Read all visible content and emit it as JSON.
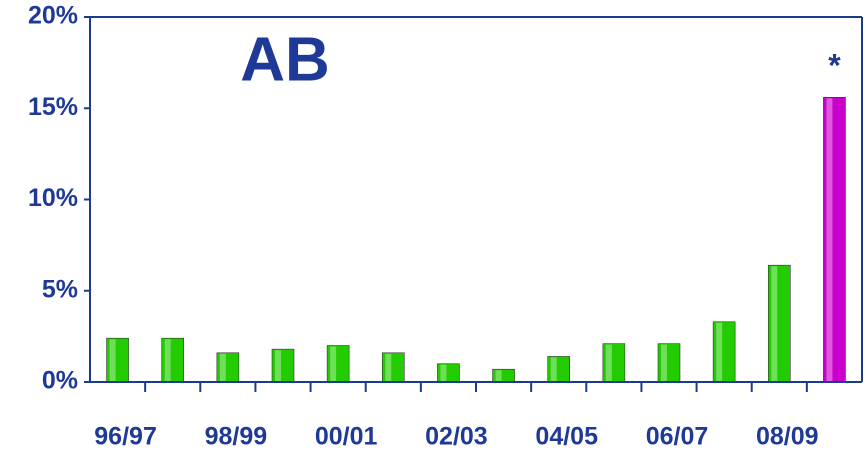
{
  "chart_data": {
    "type": "bar",
    "title": "AB",
    "annotation": "*",
    "categories": [
      "96/97",
      null,
      "98/99",
      null,
      "00/01",
      null,
      "02/03",
      null,
      "04/05",
      null,
      "06/07",
      null,
      "08/09",
      null
    ],
    "values": [
      2.4,
      2.4,
      1.6,
      1.8,
      2.0,
      1.6,
      1.0,
      0.7,
      1.4,
      2.1,
      2.1,
      3.3,
      6.4,
      15.6
    ],
    "colors": [
      "#22cc00",
      "#22cc00",
      "#22cc00",
      "#22cc00",
      "#22cc00",
      "#22cc00",
      "#22cc00",
      "#22cc00",
      "#22cc00",
      "#22cc00",
      "#22cc00",
      "#22cc00",
      "#22cc00",
      "#cc00cc"
    ],
    "ylim": [
      0,
      20
    ],
    "yticks": [
      {
        "value": 0,
        "label": "0%"
      },
      {
        "value": 5,
        "label": "5%"
      },
      {
        "value": 10,
        "label": "10%"
      },
      {
        "value": 15,
        "label": "15%"
      },
      {
        "value": 20,
        "label": "20%"
      }
    ],
    "grid": false
  }
}
